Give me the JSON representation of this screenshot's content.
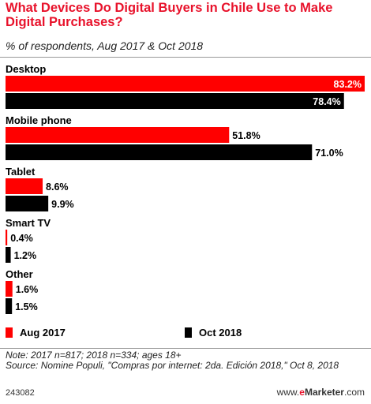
{
  "title": "What Devices Do Digital Buyers in Chile Use to Make Digital Purchases?",
  "subtitle": "% of respondents, Aug 2017 & Oct 2018",
  "colors": {
    "series1": "#ff0000",
    "series2": "#000000"
  },
  "chart_data": {
    "type": "bar",
    "orientation": "horizontal",
    "categories": [
      "Desktop",
      "Mobile phone",
      "Tablet",
      "Smart TV",
      "Other"
    ],
    "series": [
      {
        "name": "Aug 2017",
        "values": [
          83.2,
          51.8,
          8.6,
          0.4,
          1.6
        ],
        "labels": [
          "83.2%",
          "51.8%",
          "8.6%",
          "0.4%",
          "1.6%"
        ]
      },
      {
        "name": "Oct 2018",
        "values": [
          78.4,
          71.0,
          9.9,
          1.2,
          1.5
        ],
        "labels": [
          "78.4%",
          "71.0%",
          "9.9%",
          "1.2%",
          "1.5%"
        ]
      }
    ],
    "xlim": [
      0,
      83.2
    ],
    "grid": false,
    "legend": "bottom"
  },
  "notes": [
    "Note: 2017 n=817; 2018 n=334; ages 18+",
    "Source: Nomine Populi, \"Compras por internet: 2da. Edición 2018,\" Oct 8, 2018"
  ],
  "footer": {
    "id": "243082",
    "brand_prefix": "www.",
    "brand_e": "e",
    "brand_name": "Marketer",
    "brand_suffix": ".com"
  }
}
